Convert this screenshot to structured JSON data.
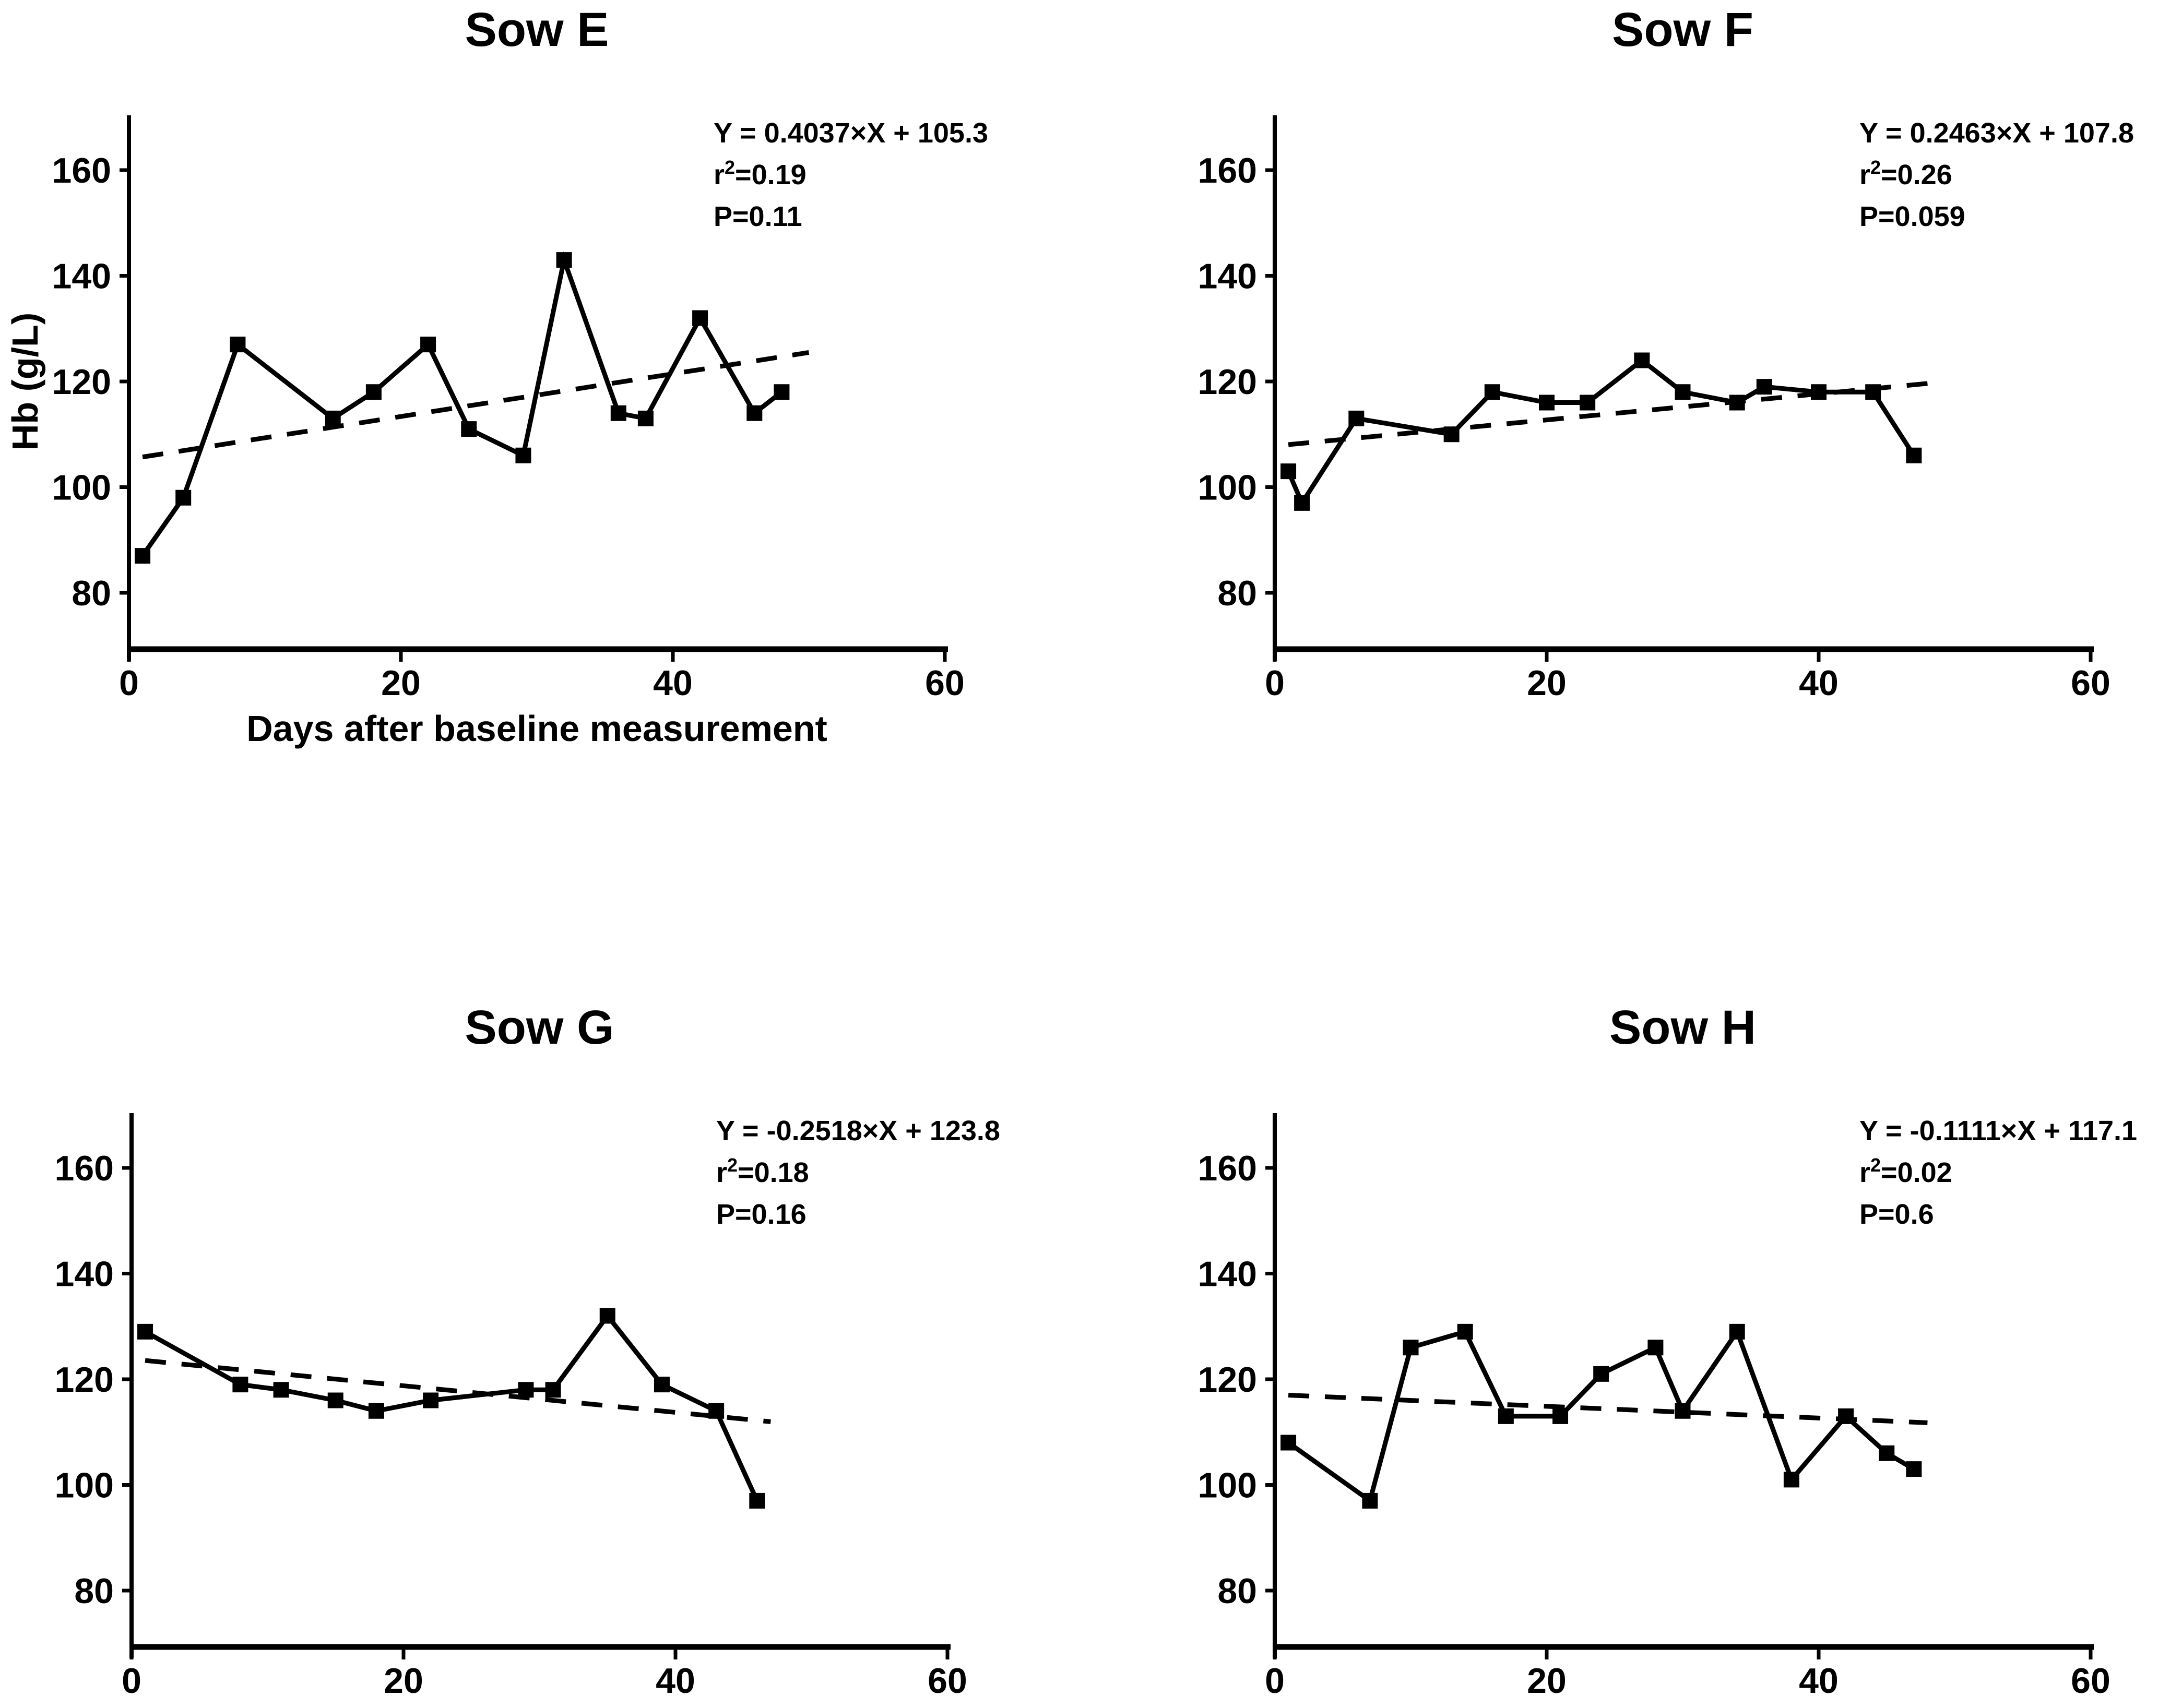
{
  "figure": {
    "background": "#ffffff",
    "ink": "#000000",
    "shared_xlabel": "Days after baseline measurement",
    "shared_ylabel": "Hb (g/L)"
  },
  "chart_data": [
    {
      "id": "sow-e",
      "type": "line",
      "title": "Sow E",
      "xlabel": "Days after baseline measurement",
      "ylabel": "Hb (g/L)",
      "show_xlabel": true,
      "show_ylabel": true,
      "x": [
        1,
        4,
        8,
        15,
        18,
        22,
        25,
        29,
        32,
        36,
        38,
        42,
        46,
        48
      ],
      "y": [
        87,
        98,
        127,
        113,
        118,
        127,
        111,
        106,
        143,
        114,
        113,
        132,
        114,
        118
      ],
      "trend": {
        "slope": 0.4037,
        "intercept": 105.3,
        "x_start": 1,
        "x_end": 50
      },
      "annotation": {
        "equation": "Y = 0.4037×X + 105.3",
        "r2_base": "r",
        "r2_sup": "2",
        "r2_rest": "=0.19",
        "p_text": "P=0.11"
      },
      "xlim": [
        0,
        60
      ],
      "xticks": [
        0,
        20,
        40,
        60
      ],
      "yticks": [
        80,
        100,
        120,
        140,
        160
      ],
      "grid": false,
      "legend": null,
      "marker": "square",
      "trend_style": "dashed"
    },
    {
      "id": "sow-f",
      "type": "line",
      "title": "Sow F",
      "xlabel": "",
      "ylabel": "",
      "show_xlabel": false,
      "show_ylabel": false,
      "x": [
        1,
        2,
        6,
        13,
        16,
        20,
        23,
        27,
        30,
        34,
        36,
        40,
        44,
        47
      ],
      "y": [
        103,
        97,
        113,
        110,
        118,
        116,
        116,
        124,
        118,
        116,
        119,
        118,
        118,
        106
      ],
      "trend": {
        "slope": 0.2463,
        "intercept": 107.8,
        "x_start": 1,
        "x_end": 48
      },
      "annotation": {
        "equation": "Y = 0.2463×X + 107.8",
        "r2_base": "r",
        "r2_sup": "2",
        "r2_rest": "=0.26",
        "p_text": "P=0.059"
      },
      "xlim": [
        0,
        60
      ],
      "xticks": [
        0,
        20,
        40,
        60
      ],
      "yticks": [
        80,
        100,
        120,
        140,
        160
      ],
      "grid": false,
      "legend": null,
      "marker": "square",
      "trend_style": "dashed"
    },
    {
      "id": "sow-g",
      "type": "line",
      "title": "Sow G",
      "xlabel": "",
      "ylabel": "",
      "show_xlabel": false,
      "show_ylabel": false,
      "x": [
        1,
        8,
        11,
        15,
        18,
        22,
        29,
        31,
        35,
        39,
        43,
        46
      ],
      "y": [
        129,
        119,
        118,
        116,
        114,
        116,
        118,
        118,
        132,
        119,
        114,
        97
      ],
      "trend": {
        "slope": -0.2518,
        "intercept": 123.8,
        "x_start": 1,
        "x_end": 47
      },
      "annotation": {
        "equation": "Y = -0.2518×X + 123.8",
        "r2_base": "r",
        "r2_sup": "2",
        "r2_rest": "=0.18",
        "p_text": "P=0.16"
      },
      "xlim": [
        0,
        60
      ],
      "xticks": [
        0,
        20,
        40,
        60
      ],
      "yticks": [
        80,
        100,
        120,
        140,
        160
      ],
      "grid": false,
      "legend": null,
      "marker": "square",
      "trend_style": "dashed"
    },
    {
      "id": "sow-h",
      "type": "line",
      "title": "Sow H",
      "xlabel": "",
      "ylabel": "",
      "show_xlabel": false,
      "show_ylabel": false,
      "x": [
        1,
        7,
        10,
        14,
        17,
        21,
        24,
        28,
        30,
        34,
        38,
        42,
        45,
        47
      ],
      "y": [
        108,
        97,
        126,
        129,
        113,
        113,
        121,
        126,
        114,
        129,
        101,
        113,
        106,
        103
      ],
      "trend": {
        "slope": -0.1111,
        "intercept": 117.1,
        "x_start": 1,
        "x_end": 48
      },
      "annotation": {
        "equation": "Y = -0.1111×X + 117.1",
        "r2_base": "r",
        "r2_sup": "2",
        "r2_rest": "=0.02",
        "p_text": "P=0.6"
      },
      "xlim": [
        0,
        60
      ],
      "xticks": [
        0,
        20,
        40,
        60
      ],
      "yticks": [
        80,
        100,
        120,
        140,
        160
      ],
      "grid": false,
      "legend": null,
      "marker": "square",
      "trend_style": "dashed"
    }
  ]
}
